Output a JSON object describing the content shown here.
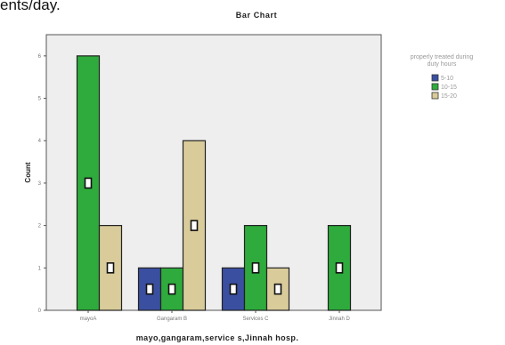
{
  "page": {
    "top_fragment": "ents/day."
  },
  "chart_data": {
    "type": "bar",
    "title": "Bar Chart",
    "xlabel": "mayo,gangaram,service s,Jinnah hosp.",
    "ylabel": "Count",
    "categories": [
      "mayoA",
      "Gangaram B",
      "Services C",
      "Jinnah D"
    ],
    "yticks": [
      0,
      1,
      2,
      3,
      4,
      5,
      6
    ],
    "ylim": [
      0,
      6.5
    ],
    "grid": false,
    "legend": {
      "title_lines": [
        "properly treated during",
        "duty hours"
      ],
      "placement": "right"
    },
    "series": [
      {
        "name": "5-10",
        "color": "#3a4fa0",
        "values": [
          0,
          1,
          1,
          0
        ]
      },
      {
        "name": "10-15",
        "color": "#2eab3c",
        "values": [
          6,
          1,
          2,
          2
        ]
      },
      {
        "name": "15-20",
        "color": "#d9cc9a",
        "values": [
          2,
          4,
          1,
          0
        ]
      }
    ]
  }
}
